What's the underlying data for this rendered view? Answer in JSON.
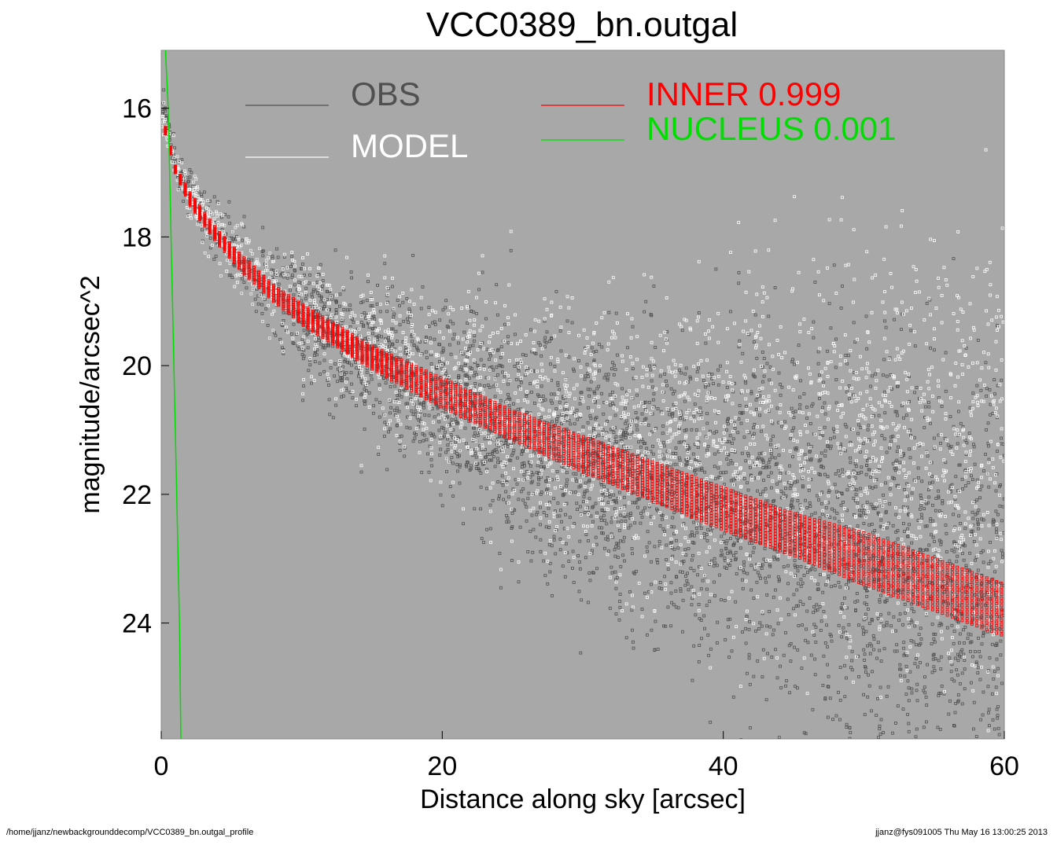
{
  "chart_data": {
    "type": "scatter",
    "title": "VCC0389_bn.outgal",
    "xlabel": "Distance along sky [arcsec]",
    "ylabel": "magnitude/arcsec^2",
    "xlim": [
      0,
      60
    ],
    "ylim": [
      25.8,
      15.1
    ],
    "y_axis_inverted": true,
    "x_ticks": [
      "0",
      "20",
      "40",
      "60"
    ],
    "y_ticks": [
      "16",
      "18",
      "20",
      "22",
      "24"
    ],
    "background_color": "#a8a8a8",
    "grid": false,
    "legend": [
      {
        "label": "OBS",
        "value": "",
        "color": "#505050"
      },
      {
        "label": "MODEL",
        "value": "",
        "color": "#ffffff"
      },
      {
        "label": "INNER",
        "value": "0.999",
        "color": "#ff0000"
      },
      {
        "label": "NUCLEUS",
        "value": "0.001",
        "color": "#00dd00"
      }
    ],
    "series": [
      {
        "name": "OBS",
        "color": "#505050",
        "note_profile_center": {
          "x": [
            0.2,
            1,
            2,
            4,
            6,
            8,
            10,
            15,
            20,
            25,
            30,
            35,
            40,
            45,
            50,
            55,
            60
          ],
          "y": [
            16.0,
            16.9,
            17.3,
            17.9,
            18.4,
            18.8,
            19.2,
            19.9,
            20.5,
            21.0,
            21.4,
            21.8,
            22.2,
            22.5,
            22.9,
            23.2,
            23.5
          ]
        }
      },
      {
        "name": "MODEL",
        "color": "#ffffff",
        "note_profile_center": {
          "x": [
            0.2,
            1,
            2,
            4,
            6,
            8,
            10,
            15,
            20,
            25,
            30,
            35,
            40,
            45,
            50,
            55,
            60
          ],
          "y": [
            16.2,
            16.9,
            17.3,
            17.9,
            18.4,
            18.8,
            19.1,
            19.8,
            20.3,
            20.7,
            21.0,
            21.2,
            21.3,
            21.4,
            21.4,
            21.5,
            21.6
          ]
        }
      },
      {
        "name": "INNER",
        "color": "#ff0000",
        "band": {
          "x": [
            0.3,
            1,
            2,
            4,
            6,
            8,
            10,
            15,
            20,
            25,
            30,
            35,
            40,
            45,
            50,
            55,
            60
          ],
          "y_low": [
            16.3,
            16.9,
            17.3,
            17.9,
            18.35,
            18.75,
            19.05,
            19.7,
            20.2,
            20.7,
            21.1,
            21.5,
            21.9,
            22.3,
            22.6,
            23.0,
            23.4
          ],
          "y_high": [
            16.4,
            17.0,
            17.5,
            18.1,
            18.6,
            19.0,
            19.35,
            20.05,
            20.65,
            21.15,
            21.65,
            22.1,
            22.55,
            22.95,
            23.4,
            23.8,
            24.2
          ]
        }
      },
      {
        "name": "NUCLEUS",
        "color": "#00dd00",
        "line": {
          "x": [
            0.3,
            0.5,
            0.7,
            0.9,
            1.1,
            1.3,
            1.4
          ],
          "y": [
            15.1,
            16.0,
            18.0,
            20.0,
            22.0,
            24.0,
            25.8
          ]
        }
      }
    ]
  },
  "footer": {
    "left": "/home/jjanz/newbackgrounddecomp/VCC0389_bn.outgal_profile",
    "right": "jjanz@fys091005  Thu May 16 13:00:25 2013"
  }
}
